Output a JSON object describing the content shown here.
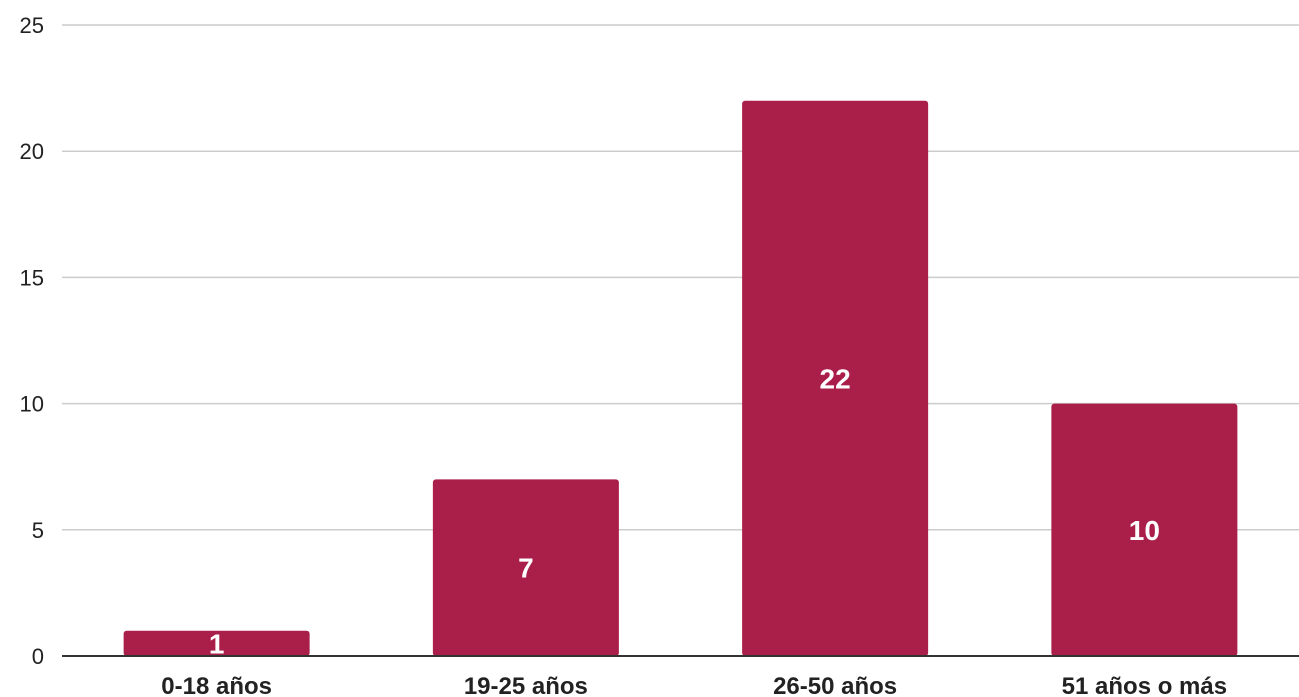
{
  "chart_data": {
    "type": "bar",
    "categories": [
      "0-18 años",
      "19-25 años",
      "26-50 años",
      "51 años o más"
    ],
    "values": [
      1,
      7,
      22,
      10
    ],
    "data_labels": [
      "1",
      "7",
      "22",
      "10"
    ],
    "title": "",
    "xlabel": "",
    "ylabel": "",
    "ylim": [
      0,
      25
    ],
    "yticks": [
      0,
      5,
      10,
      15,
      20,
      25
    ],
    "ytick_labels": [
      "0",
      "5",
      "10",
      "15",
      "20",
      "25"
    ],
    "grid": true,
    "legend": "none",
    "colors": {
      "bar": "#a91f4a",
      "grid": "#cccccc",
      "axis": "#333333",
      "label": "#222222",
      "data_label": "#ffffff"
    }
  }
}
